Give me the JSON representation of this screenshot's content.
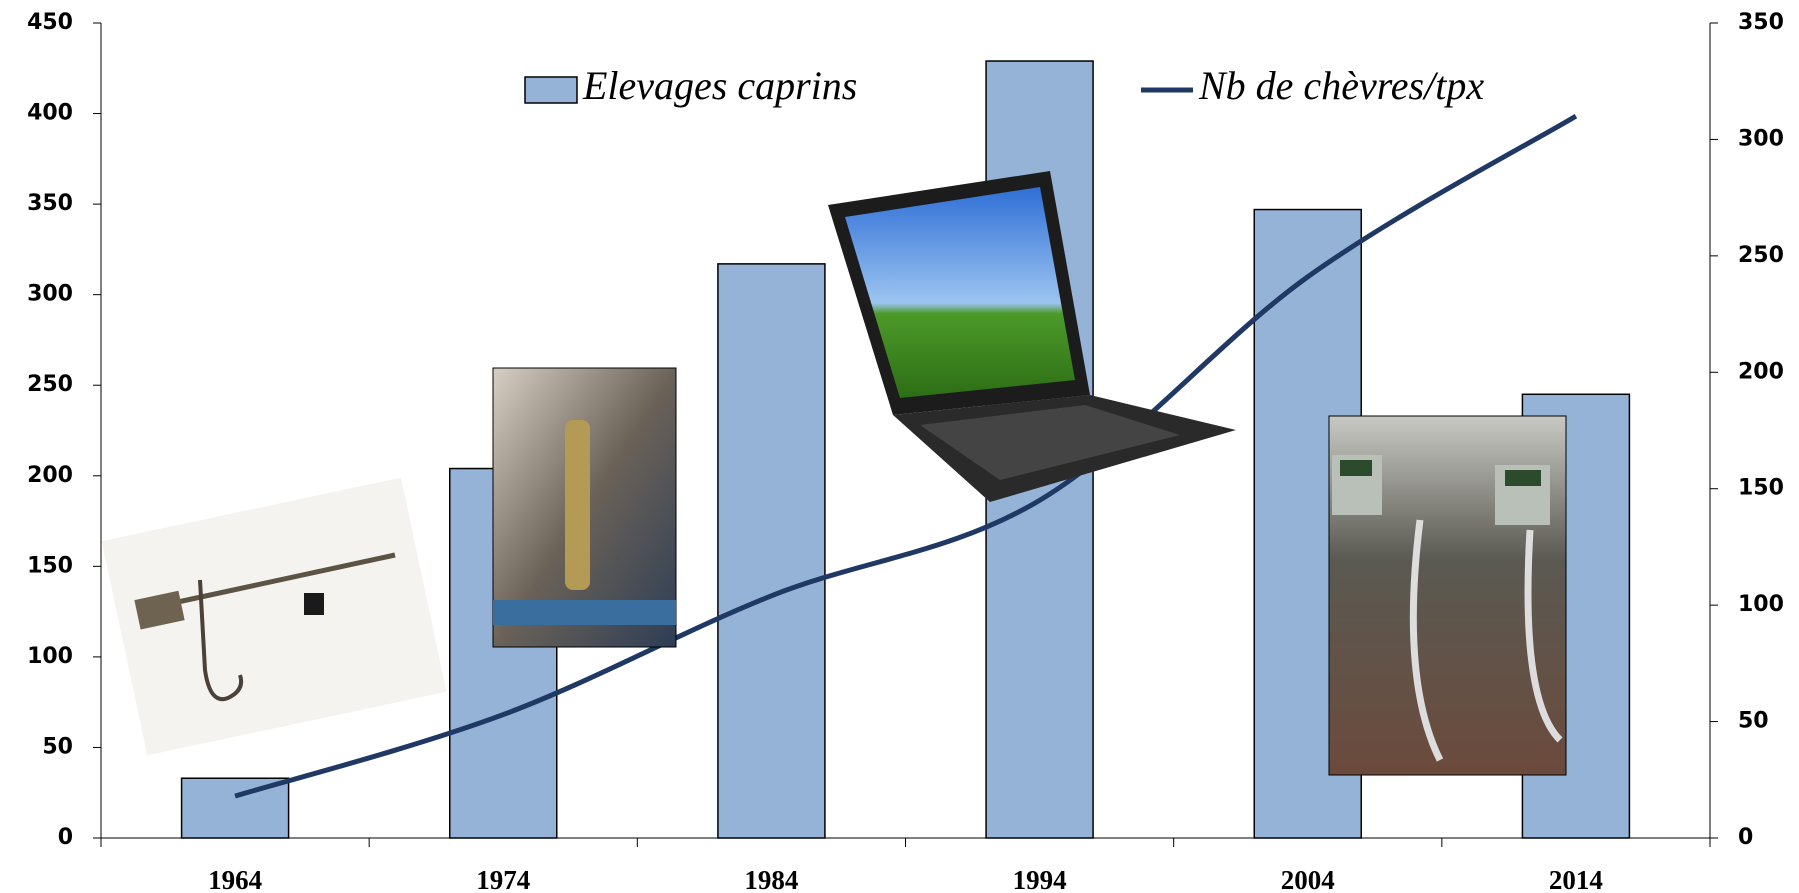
{
  "chart_data": {
    "type": "bar_line",
    "categories": [
      "1964",
      "1974",
      "1984",
      "1994",
      "2004",
      "2014"
    ],
    "series": [
      {
        "name": "Elevages caprins",
        "type": "bar",
        "color": "#95b3d7",
        "values": [
          33,
          204,
          317,
          429,
          347,
          245
        ]
      },
      {
        "name": "Nb de chèvres/tpx",
        "type": "line",
        "axis": "y2",
        "color": "#1f3864",
        "values": [
          18,
          53,
          104,
          145,
          241,
          310
        ]
      }
    ],
    "ylim": [
      0,
      450
    ],
    "yticks": [
      0,
      50,
      100,
      150,
      200,
      250,
      300,
      350,
      400,
      450
    ],
    "y2lim": [
      0,
      350
    ],
    "y2ticks": [
      0,
      50,
      100,
      150,
      200,
      250,
      300,
      350
    ],
    "grid": false,
    "legend": "top"
  }
}
